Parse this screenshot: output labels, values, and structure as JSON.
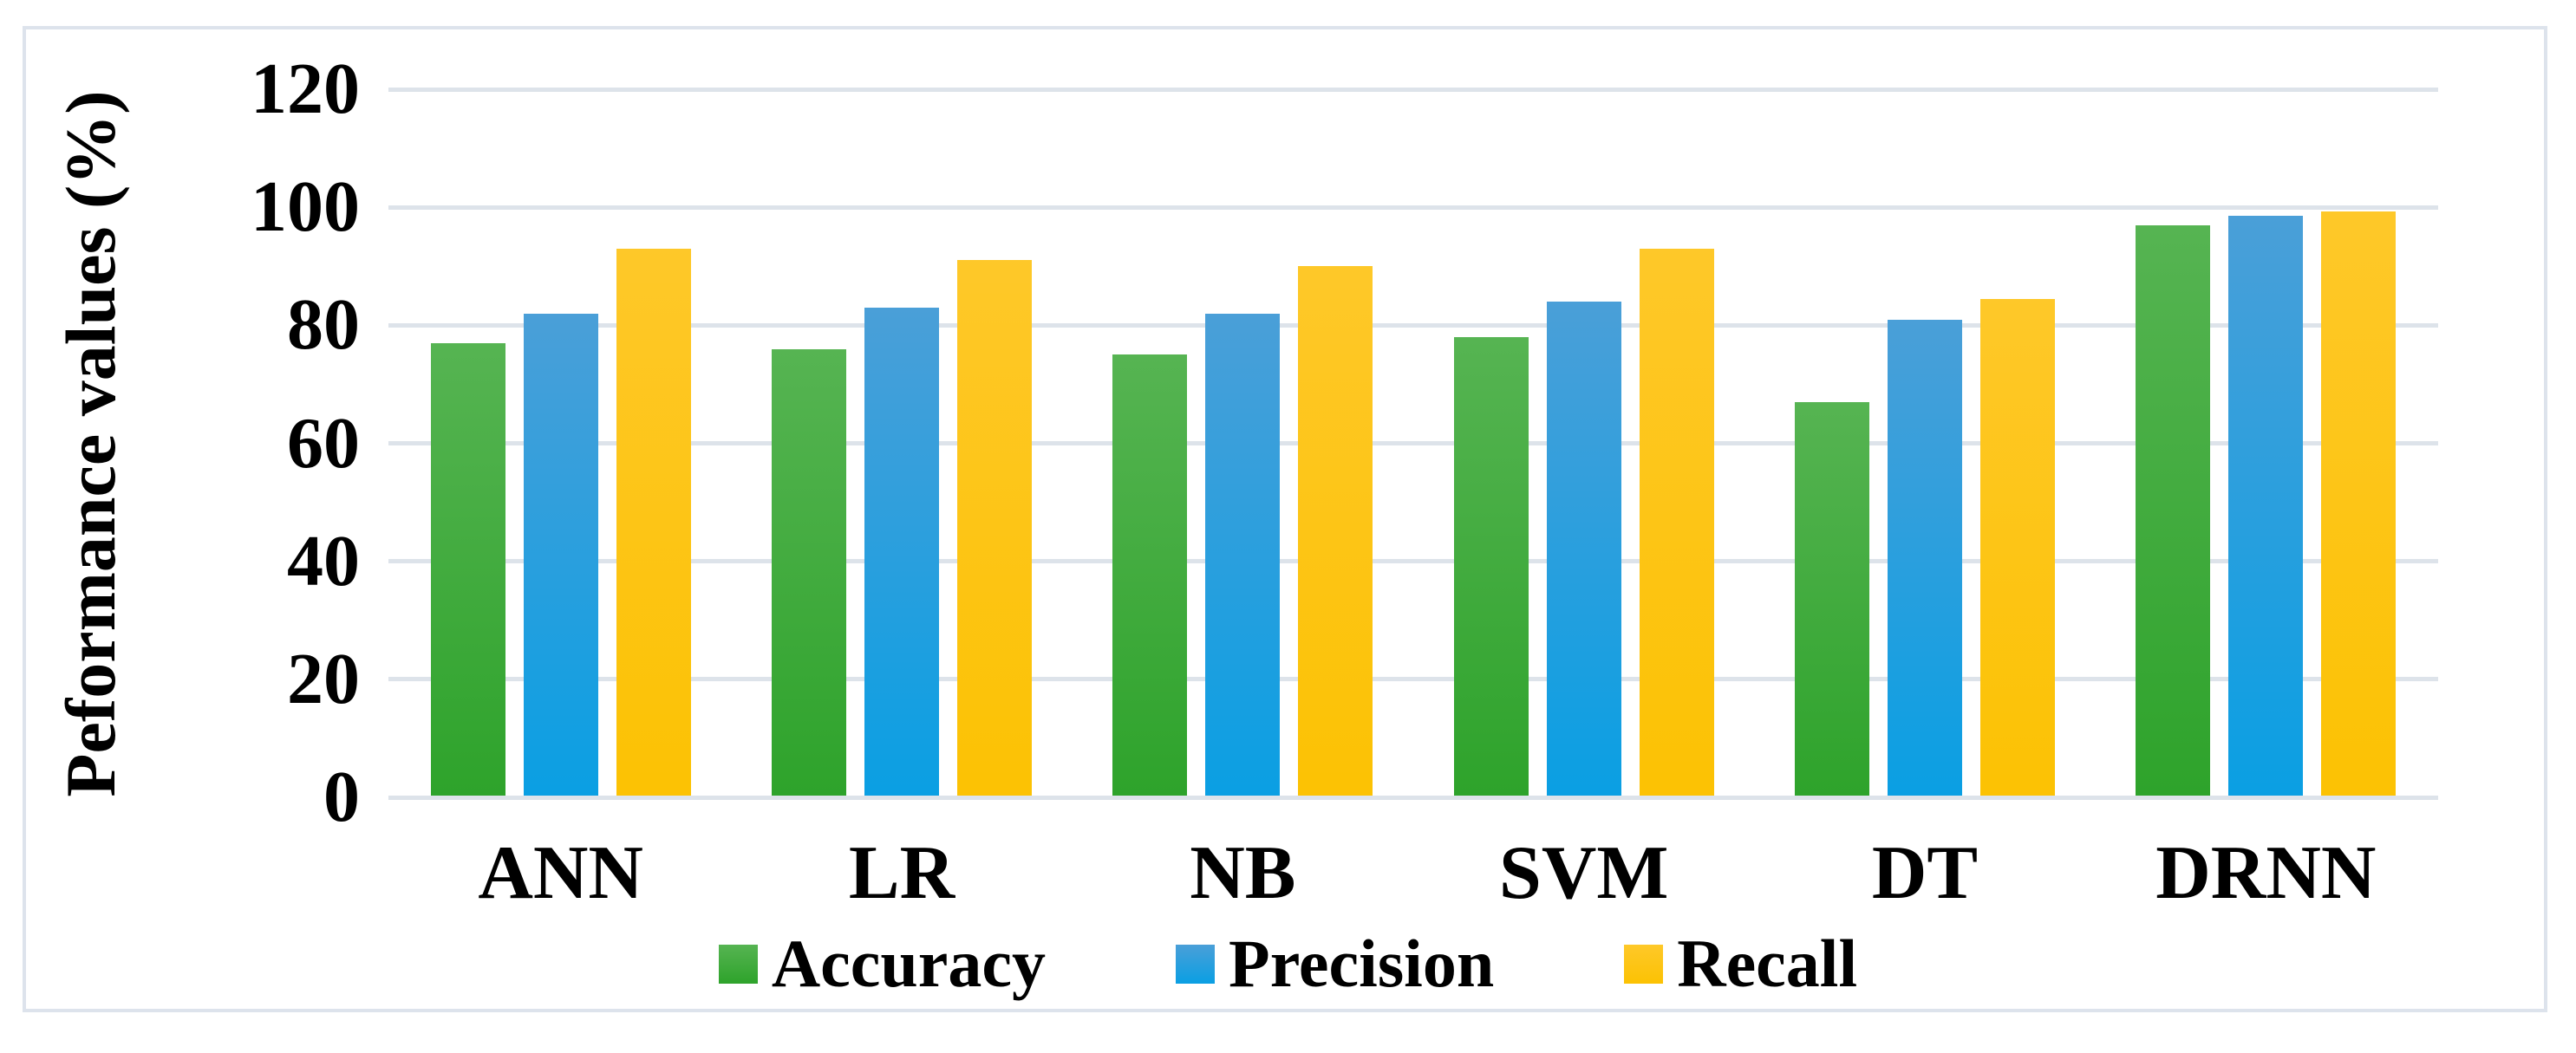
{
  "chart_data": {
    "type": "bar",
    "categories": [
      "ANN",
      "LR",
      "NB",
      "SVM",
      "DT",
      "DRNN"
    ],
    "series": [
      {
        "name": "Accuracy",
        "color": "#3cab39",
        "color_top": "#56b452",
        "color_bottom": "#2ea32b",
        "values": [
          77,
          76,
          75,
          78,
          67,
          97
        ]
      },
      {
        "name": "Precision",
        "color": "#2f9fdd",
        "color_top": "#4a9fd8",
        "color_bottom": "#0a9fe3",
        "values": [
          82,
          83,
          82,
          84,
          81,
          98.5
        ]
      },
      {
        "name": "Recall",
        "color": "#fdc516",
        "color_top": "#fec829",
        "color_bottom": "#fcc203",
        "values": [
          93,
          91,
          90,
          93,
          84.5,
          99.3
        ]
      }
    ],
    "ylabel": "Peformance values (%)",
    "ylim": [
      0,
      120
    ],
    "yticks": [
      0,
      20,
      40,
      60,
      80,
      100,
      120
    ],
    "grid": "horizontal",
    "gridline_color": "#dde3ea",
    "border_color": "#dde3ec",
    "legend_position": "bottom",
    "legend": [
      "Accuracy",
      "Precision",
      "Recall"
    ]
  }
}
